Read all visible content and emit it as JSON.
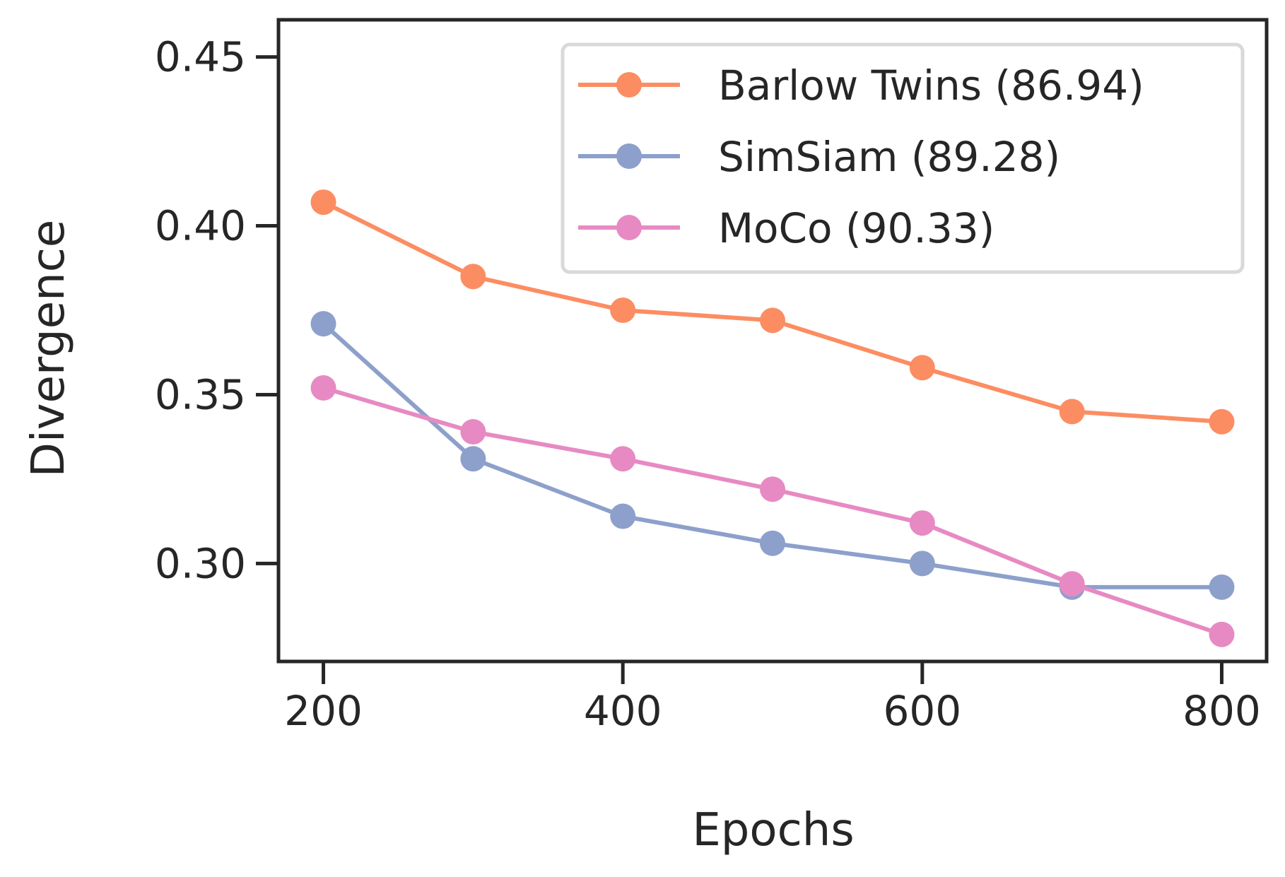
{
  "chart_data": {
    "type": "line",
    "title": "",
    "xlabel": "Epochs",
    "ylabel": "Divergence",
    "xlim": [
      170,
      830
    ],
    "ylim": [
      0.271,
      0.461
    ],
    "x": [
      200,
      300,
      400,
      500,
      600,
      700,
      800
    ],
    "xticks": [
      200,
      400,
      600,
      800
    ],
    "xtick_labels": [
      "200",
      "400",
      "600",
      "800"
    ],
    "yticks": [
      0.3,
      0.35,
      0.4,
      0.45
    ],
    "ytick_labels": [
      "0.30",
      "0.35",
      "0.40",
      "0.45"
    ],
    "grid": false,
    "legend_position": "top-right",
    "series": [
      {
        "name": "Barlow Twins (86.94)",
        "color": "#fc8d62",
        "values": [
          0.407,
          0.385,
          0.375,
          0.372,
          0.358,
          0.345,
          0.342
        ]
      },
      {
        "name": "SimSiam (89.28)",
        "color": "#8da0cb",
        "values": [
          0.371,
          0.331,
          0.314,
          0.306,
          0.3,
          0.293,
          0.293
        ]
      },
      {
        "name": "MoCo (90.33)",
        "color": "#e78ac3",
        "values": [
          0.352,
          0.339,
          0.331,
          0.322,
          0.312,
          0.294,
          0.279
        ]
      }
    ]
  }
}
